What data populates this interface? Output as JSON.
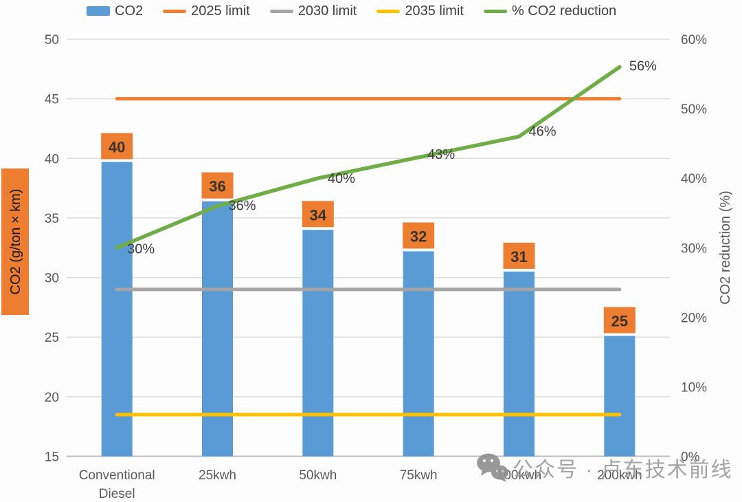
{
  "legend": {
    "items": [
      {
        "label": "CO2",
        "marker": "square",
        "color": "#5b9bd5"
      },
      {
        "label": "2025 limit",
        "marker": "line",
        "color": "#ed7d31"
      },
      {
        "label": "2030 limit",
        "marker": "line",
        "color": "#a5a5a5"
      },
      {
        "label": "2035 limit",
        "marker": "line",
        "color": "#ffc000"
      },
      {
        "label": "% CO2 reduction",
        "marker": "line",
        "color": "#70ad47"
      }
    ]
  },
  "chart_data": {
    "type": "bar",
    "categories": [
      "Conventional Diesel",
      "25kwh",
      "50kwh",
      "75kwh",
      "100kwh",
      "200kwh"
    ],
    "series": [
      {
        "name": "CO2",
        "type": "bar",
        "axis": "left",
        "color": "#5b9bd5",
        "values": [
          39.7,
          36.4,
          34.0,
          32.2,
          30.5,
          25.1
        ],
        "labels": [
          "40",
          "36",
          "34",
          "32",
          "31",
          "25"
        ],
        "label_box_color": "#ed7d31",
        "label_text_color": "#3a332c"
      },
      {
        "name": "2025 limit",
        "type": "line",
        "axis": "left",
        "color": "#ed7d31",
        "values": [
          45,
          45,
          45,
          45,
          45,
          45
        ]
      },
      {
        "name": "2030 limit",
        "type": "line",
        "axis": "left",
        "color": "#a5a5a5",
        "values": [
          29,
          29,
          29,
          29,
          29,
          29
        ]
      },
      {
        "name": "2035 limit",
        "type": "line",
        "axis": "left",
        "color": "#ffc000",
        "values": [
          18.5,
          18.5,
          18.5,
          18.5,
          18.5,
          18.5
        ]
      },
      {
        "name": "% CO2 reduction",
        "type": "line",
        "axis": "right",
        "color": "#70ad47",
        "values": [
          30,
          36,
          40,
          43,
          46,
          56
        ],
        "labels": [
          "30%",
          "36%",
          "40%",
          "43%",
          "46%",
          "56%"
        ]
      }
    ],
    "left_axis": {
      "title": "CO2 (g/ton × km)",
      "title_bg": "#ed7d31",
      "min": 15,
      "max": 50,
      "step": 5,
      "tick_labels": [
        "50",
        "45",
        "40",
        "35",
        "30",
        "25",
        "20",
        "15"
      ]
    },
    "right_axis": {
      "title": "CO2 reduction (%)",
      "min": 0,
      "max": 60,
      "step": 10,
      "tick_labels": [
        "60%",
        "50%",
        "40%",
        "30%",
        "20%",
        "10%",
        "0%"
      ]
    },
    "grid": true,
    "legend_position": "top"
  },
  "watermark": {
    "icon": "wechat-icon",
    "text": "公众号 · 卢东技术前线"
  },
  "colors": {
    "grid": "#dedede",
    "axis_line": "#bdbdbd",
    "tick_text": "#595959",
    "point_label_text": "#3d3d3d"
  }
}
